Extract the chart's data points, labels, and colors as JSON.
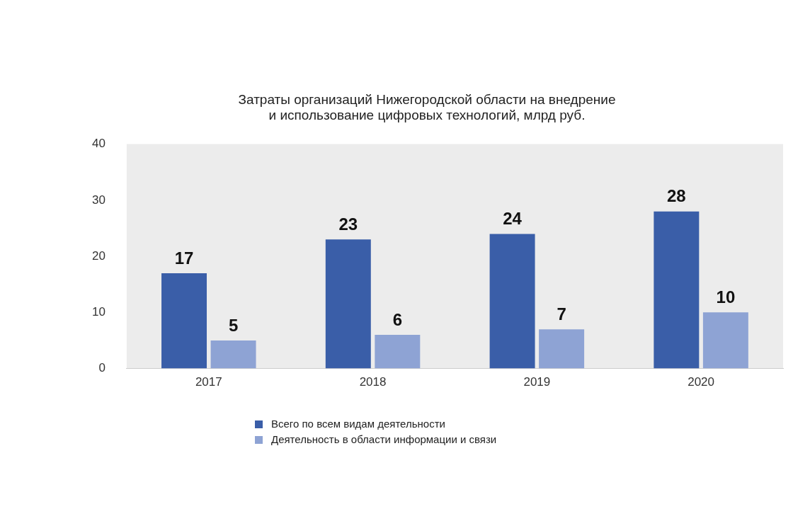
{
  "chart_data": {
    "type": "bar",
    "title": "Затраты организаций Нижегородской области на внедрение\nи использование цифровых технологий, млрд руб.",
    "categories": [
      "2017",
      "2018",
      "2019",
      "2020"
    ],
    "series": [
      {
        "name": "Всего по всем видам деятельности",
        "color": "#3a5ea8",
        "values": [
          17,
          23,
          24,
          28
        ]
      },
      {
        "name": "Деятельность в области информации и связи",
        "color": "#8ea3d4",
        "values": [
          5,
          6,
          7,
          10
        ]
      }
    ],
    "ylim": [
      0,
      40
    ],
    "yticks": [
      0,
      10,
      20,
      30,
      40
    ],
    "grid": false,
    "legend": "bottom",
    "data_labels": true
  }
}
